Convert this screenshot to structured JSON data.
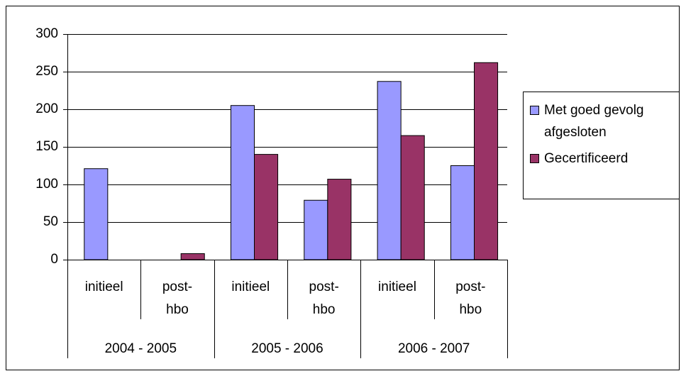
{
  "chart_data": {
    "type": "bar",
    "categories": [
      "initieel",
      "post-hbo",
      "initieel",
      "post-hbo",
      "initieel",
      "post-hbo"
    ],
    "groups": [
      "2004 - 2005",
      "2005 - 2006",
      "2006 - 2007"
    ],
    "series": [
      {
        "name": "Met goed gevolg afgesloten",
        "color": "#9999ff",
        "values": [
          121,
          null,
          205,
          79,
          237,
          125
        ]
      },
      {
        "name": "Gecertificeerd",
        "color": "#993366",
        "values": [
          null,
          8,
          140,
          107,
          165,
          262
        ]
      }
    ],
    "ylim": [
      0,
      300
    ],
    "yticks": [
      0,
      50,
      100,
      150,
      200,
      250,
      300
    ],
    "grid": true,
    "legend": "right"
  }
}
